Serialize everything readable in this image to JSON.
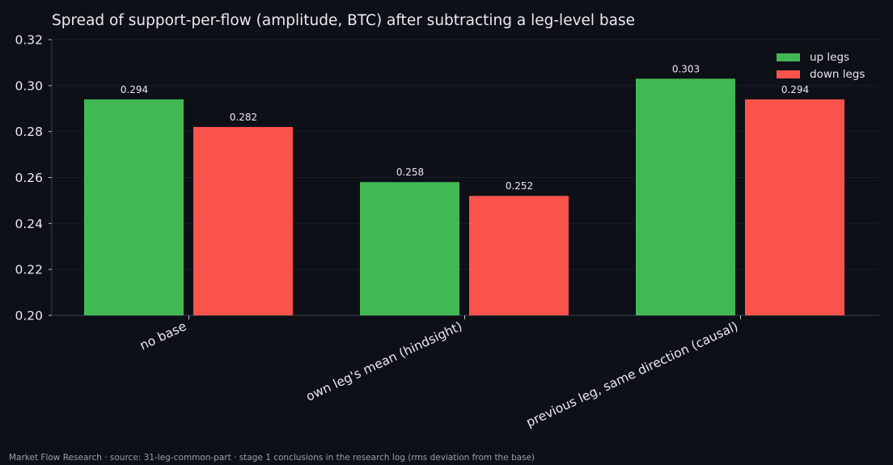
{
  "chart_data": {
    "type": "bar",
    "title": "Spread of support-per-flow (amplitude, BTC) after subtracting a leg-level base",
    "categories": [
      "no base",
      "own leg's mean (hindsight)",
      "previous leg, same direction (causal)"
    ],
    "series": [
      {
        "name": "up legs",
        "color": "#40b955",
        "values": [
          0.294,
          0.258,
          0.303
        ],
        "labels": [
          "0.294",
          "0.258",
          "0.303"
        ]
      },
      {
        "name": "down legs",
        "color": "#f9534c",
        "values": [
          0.282,
          0.252,
          0.294
        ],
        "labels": [
          "0.282",
          "0.252",
          "0.294"
        ]
      }
    ],
    "xlabel": "",
    "ylabel": "",
    "ylim": [
      0.2,
      0.32
    ],
    "yticks": [
      "0.20",
      "0.22",
      "0.24",
      "0.26",
      "0.28",
      "0.30",
      "0.32"
    ],
    "grid": true,
    "legend_position": "top-right"
  },
  "footer": "Market Flow Research · source: 31-leg-common-part · stage 1 conclusions in the research log (rms deviation from the base)"
}
